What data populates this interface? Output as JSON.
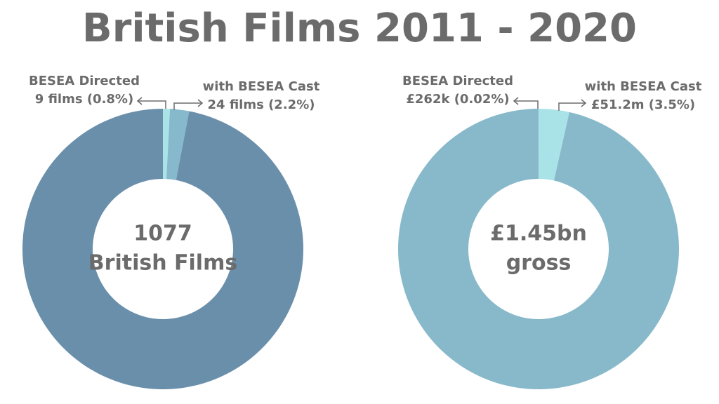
{
  "title": "British Films 2011 - 2020",
  "chart_data": [
    {
      "type": "donut",
      "categories": [
        "BESEA Directed",
        "with BESEA Cast",
        null
      ],
      "values": [
        0.8,
        2.2,
        97
      ],
      "value_labels": [
        "9 films (0.8%)",
        "24 films (2.2%)",
        null
      ],
      "colors": [
        "#a9e3e8",
        "#86b9cc",
        "#6a8fab"
      ],
      "center_label": [
        "1077",
        "British Films"
      ]
    },
    {
      "type": "donut",
      "categories": [
        "BESEA Directed",
        "with BESEA Cast",
        null
      ],
      "values": [
        0.02,
        3.5,
        96.48
      ],
      "value_labels": [
        "£262k (0.02%)",
        "£51.2m (3.5%)",
        null
      ],
      "colors": [
        "#a9e3e8",
        "#a9e3e8",
        "#88b9cb"
      ],
      "center_label": [
        "£1.45bn",
        "gross"
      ]
    }
  ]
}
